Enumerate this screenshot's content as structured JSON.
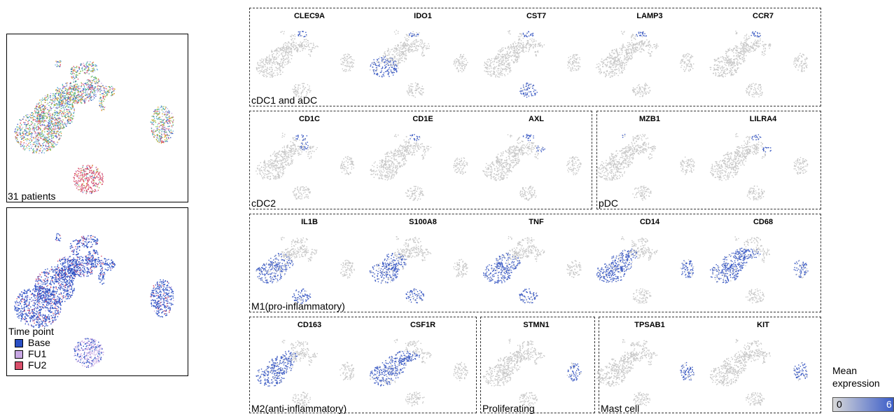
{
  "overview": {
    "patients_label": "31 patients",
    "legend": {
      "title": "Time point",
      "items": [
        {
          "label": "Base",
          "color": "#2a4fc4"
        },
        {
          "label": "FU1",
          "color": "#c8a7e3"
        },
        {
          "label": "FU2",
          "color": "#d94f6b"
        }
      ]
    }
  },
  "groups": [
    {
      "label": "cDC1 and aDC",
      "genes": [
        "CLEC9A",
        "IDO1",
        "CST7",
        "LAMP3",
        "CCR7"
      ]
    },
    {
      "label": "cDC2",
      "genes": [
        "CD1C",
        "CD1E",
        "AXL"
      ]
    },
    {
      "label": "pDC",
      "genes": [
        "MZB1",
        "LILRA4"
      ]
    },
    {
      "label": "M1(pro-inflammatory)",
      "genes": [
        "IL1B",
        "S100A8",
        "TNF",
        "CD14",
        "CD68"
      ]
    },
    {
      "label": "M2(anti-inflammatory)",
      "genes": [
        "CD163",
        "CSF1R"
      ]
    },
    {
      "label": "Proliferating",
      "genes": [
        "STMN1"
      ]
    },
    {
      "label": "Mast cell",
      "genes": [
        "TPSAB1",
        "KIT"
      ]
    }
  ],
  "colorbar": {
    "title_line1": "Mean",
    "title_line2": "expression",
    "min": "0",
    "max": "6",
    "low_color": "#d9d9d9",
    "high_color": "#3a5cc8"
  },
  "colors": {
    "grey_cell": "#c8c8c8",
    "expr": "#3c5bc4"
  }
}
